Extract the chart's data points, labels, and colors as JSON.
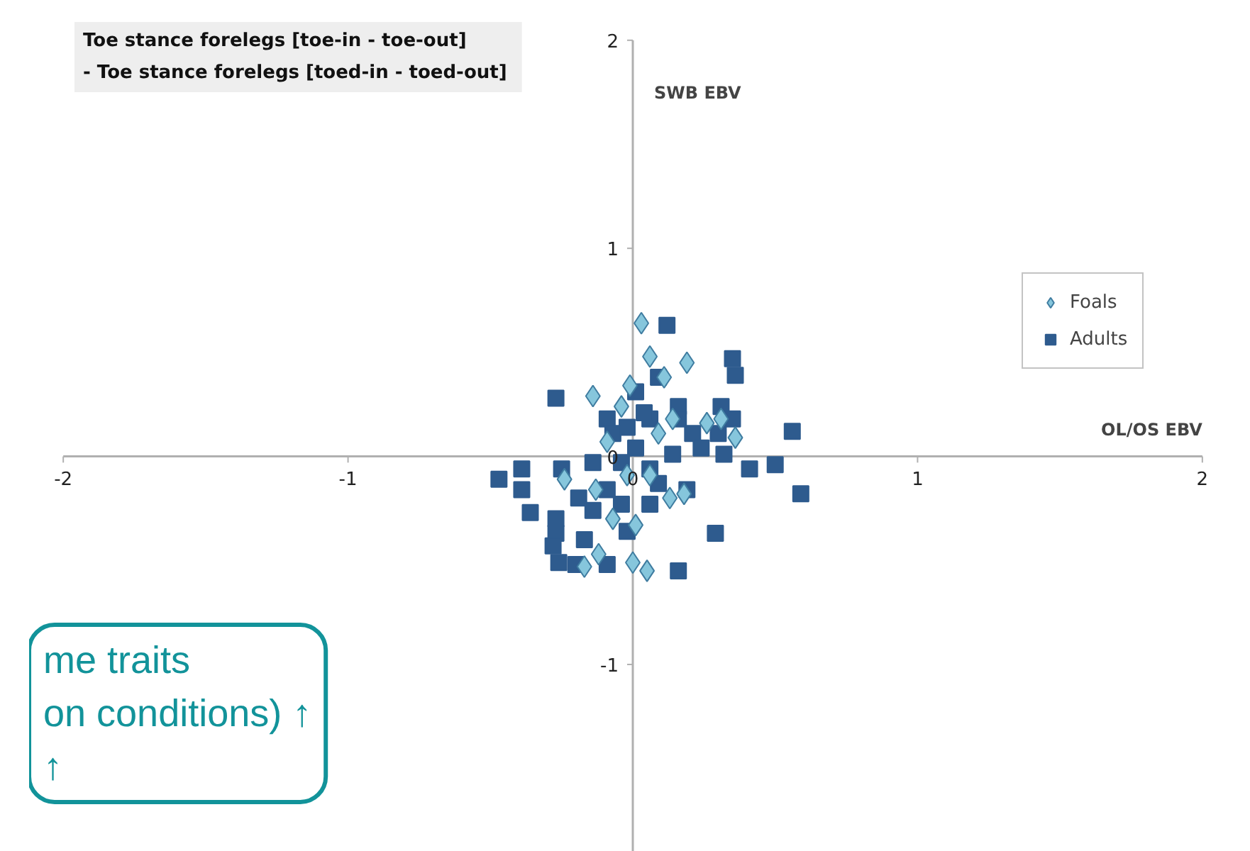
{
  "chart_data": {
    "type": "scatter",
    "title": "Toe stance forelegs [toe-in - toe-out]",
    "subtitle": "- Toe stance forelegs  [toed-in - toed-out]",
    "xlabel": "OL/OS EBV",
    "ylabel": "SWB EBV",
    "xlim": [
      -2,
      2
    ],
    "ylim": [
      -1.9,
      2
    ],
    "xticks": [
      -2,
      -1,
      0,
      1,
      2
    ],
    "yticks": [
      -1,
      0,
      1,
      2
    ],
    "grid": false,
    "legend": "right",
    "annotations": [
      "me traits",
      "on conditions) ↑",
      "↑"
    ],
    "series": [
      {
        "name": "Adults",
        "color": "#2e5b8e",
        "marker": "square",
        "x": [
          0.12,
          0.35,
          0.36,
          -0.27,
          -0.47,
          -0.39,
          -0.39,
          -0.25,
          -0.36,
          -0.27,
          -0.27,
          -0.28,
          -0.26,
          -0.2,
          -0.09,
          0.16,
          0.29,
          0.41,
          0.5,
          0.56,
          0.59,
          0.31,
          0.35,
          0.3,
          0.32,
          0.09,
          -0.14,
          -0.09,
          -0.02,
          0.06,
          0.16,
          0.21,
          0.01,
          -0.04,
          0.06,
          0.14,
          -0.09,
          -0.19,
          -0.14,
          -0.04,
          0.06,
          -0.02,
          -0.17,
          0.19,
          0.24,
          0.01,
          0.09,
          0.16,
          -0.07,
          0.04
        ],
        "values": [
          0.63,
          0.47,
          0.39,
          0.28,
          -0.11,
          -0.06,
          -0.16,
          -0.06,
          -0.27,
          -0.3,
          -0.37,
          -0.43,
          -0.51,
          -0.52,
          -0.52,
          -0.55,
          -0.37,
          -0.06,
          -0.04,
          0.12,
          -0.18,
          0.24,
          0.18,
          0.11,
          0.01,
          -0.13,
          -0.03,
          0.18,
          0.14,
          0.18,
          0.24,
          0.11,
          0.04,
          -0.03,
          -0.06,
          0.01,
          -0.16,
          -0.2,
          -0.26,
          -0.23,
          -0.23,
          -0.36,
          -0.4,
          -0.16,
          0.04,
          0.31,
          0.38,
          0.18,
          0.11,
          0.21
        ]
      },
      {
        "name": "Foals",
        "color": "#86c6dc",
        "marker": "diamond",
        "x": [
          0.03,
          0.06,
          0.19,
          0.11,
          -0.01,
          -0.14,
          0.31,
          0.26,
          0.36,
          0.13,
          0.01,
          -0.12,
          -0.17,
          0.0,
          0.05,
          -0.24,
          0.18,
          -0.07,
          -0.13,
          0.09,
          0.14,
          -0.02,
          -0.09,
          -0.04,
          0.06
        ],
        "values": [
          0.64,
          0.48,
          0.45,
          0.38,
          0.34,
          0.29,
          0.18,
          0.16,
          0.09,
          -0.2,
          -0.33,
          -0.47,
          -0.53,
          -0.51,
          -0.55,
          -0.11,
          -0.18,
          -0.3,
          -0.16,
          0.11,
          0.18,
          -0.09,
          0.07,
          0.24,
          -0.09
        ]
      }
    ]
  }
}
